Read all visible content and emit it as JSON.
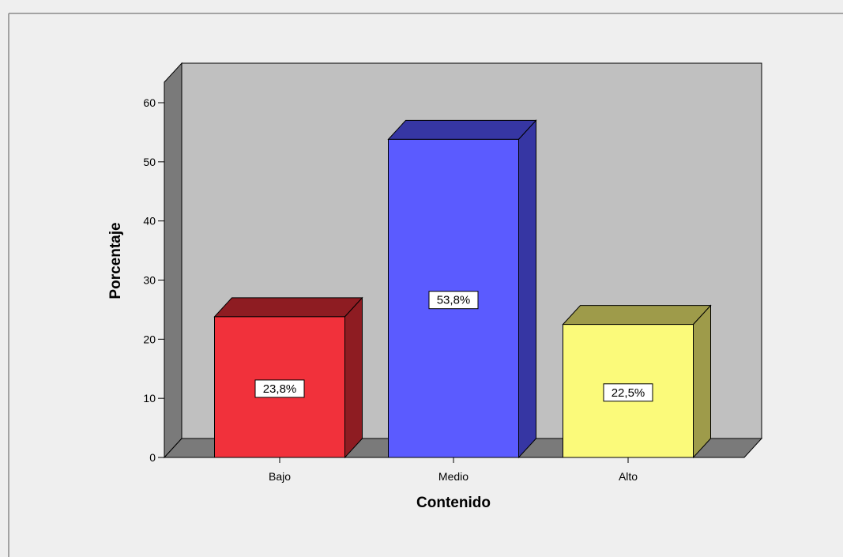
{
  "chart_data": {
    "type": "bar",
    "style": "3d",
    "categories": [
      "Bajo",
      "Medio",
      "Alto"
    ],
    "values": [
      23.8,
      53.8,
      22.5
    ],
    "data_labels": [
      "23,8%",
      "53,8%",
      "22,5%"
    ],
    "colors": [
      "#f1313b",
      "#5b5bff",
      "#fbfa7a"
    ],
    "side_colors": [
      "#8e1c22",
      "#3636a3",
      "#9e9b4a"
    ],
    "xlabel": "Contenido",
    "ylabel": "Porcentaje",
    "ylim": [
      0,
      60
    ],
    "yticks": [
      0,
      10,
      20,
      30,
      40,
      50,
      60
    ],
    "grid": false,
    "legend": "none",
    "background": "#efefef",
    "plot_wall_color": "#c0c0c0",
    "plot_side_color": "#7a7a7a"
  }
}
